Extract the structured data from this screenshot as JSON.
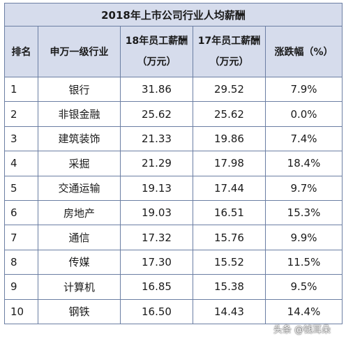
{
  "title": "2018年上市公司行业人均薪酬",
  "headers": {
    "rank": "排名",
    "industry": "申万一级行业",
    "salary18": "18年员工薪酬（万元）",
    "salary18_l1": "18年员工薪酬",
    "salary18_l2": "（万元）",
    "salary17_l1": "17年员工薪酬",
    "salary17_l2": "（万元）",
    "change": "涨跌幅（%）"
  },
  "rows": [
    {
      "rank": "1",
      "industry": "银行",
      "s18": "31.86",
      "s17": "29.52",
      "chg": "7.9%"
    },
    {
      "rank": "2",
      "industry": "非银金融",
      "s18": "25.62",
      "s17": "25.62",
      "chg": "0.0%"
    },
    {
      "rank": "3",
      "industry": "建筑装饰",
      "s18": "21.33",
      "s17": "19.86",
      "chg": "7.4%"
    },
    {
      "rank": "4",
      "industry": "采掘",
      "s18": "21.29",
      "s17": "17.98",
      "chg": "18.4%"
    },
    {
      "rank": "5",
      "industry": "交通运输",
      "s18": "19.13",
      "s17": "17.44",
      "chg": "9.7%"
    },
    {
      "rank": "6",
      "industry": "房地产",
      "s18": "19.03",
      "s17": "16.51",
      "chg": "15.3%"
    },
    {
      "rank": "7",
      "industry": "通信",
      "s18": "17.32",
      "s17": "15.76",
      "chg": "9.9%"
    },
    {
      "rank": "8",
      "industry": "传媒",
      "s18": "17.30",
      "s17": "15.52",
      "chg": "11.5%"
    },
    {
      "rank": "9",
      "industry": "计算机",
      "s18": "16.85",
      "s17": "15.38",
      "chg": "9.5%"
    },
    {
      "rank": "10",
      "industry": "钢铁",
      "s18": "16.50",
      "s17": "14.43",
      "chg": "14.4%"
    }
  ],
  "watermark": "头条 @钱耳朵"
}
